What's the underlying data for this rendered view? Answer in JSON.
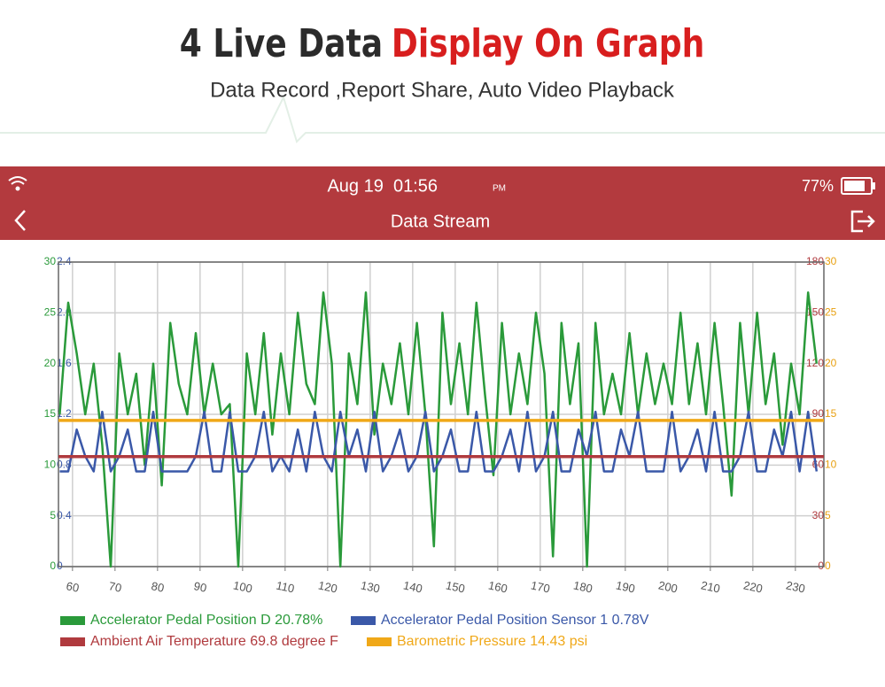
{
  "header": {
    "title_dark": "4 Live Data",
    "title_red": "Display On Graph",
    "subtitle": "Data Record ,Report Share, Auto Video Playback"
  },
  "status_bar": {
    "time": "Aug 19  01:56",
    "ampm": "PM",
    "battery": "77%"
  },
  "nav_bar": {
    "title": "Data Stream"
  },
  "chart_data": {
    "type": "line",
    "x": [
      57,
      59,
      61,
      63,
      65,
      67,
      69,
      71,
      73,
      75,
      77,
      79,
      81,
      83,
      85,
      87,
      89,
      91,
      93,
      95,
      97,
      99,
      101,
      103,
      105,
      107,
      109,
      111,
      113,
      115,
      117,
      119,
      121,
      123,
      125,
      127,
      129,
      131,
      133,
      135,
      137,
      139,
      141,
      143,
      145,
      147,
      149,
      151,
      153,
      155,
      157,
      159,
      161,
      163,
      165,
      167,
      169,
      171,
      173,
      175,
      177,
      179,
      181,
      183,
      185,
      187,
      189,
      191,
      193,
      195,
      197,
      199,
      201,
      203,
      205,
      207,
      209,
      211,
      213,
      215,
      217,
      219,
      221,
      223,
      225,
      227,
      229,
      231,
      233,
      235
    ],
    "xlim": [
      56.7,
      236.7
    ],
    "xticks": [
      60,
      70,
      80,
      90,
      100,
      110,
      120,
      130,
      140,
      150,
      160,
      170,
      180,
      190,
      200,
      210,
      220,
      230
    ],
    "grid": true,
    "yaxes": [
      {
        "side": "left",
        "color": "#2a9a3a",
        "lim": [
          0,
          30
        ],
        "ticks": [
          0,
          5,
          10,
          15,
          20,
          25,
          30
        ]
      },
      {
        "side": "left",
        "color": "#3a58a8",
        "lim": [
          0,
          2.4
        ],
        "ticks": [
          0,
          0.4,
          0.8,
          1.2,
          1.6,
          {
            "value": 2,
            "label": "2.0"
          },
          2.4
        ]
      },
      {
        "side": "right",
        "color": "#b03a3e",
        "lim": [
          0,
          180
        ],
        "ticks": [
          0,
          30,
          60,
          90,
          120,
          150,
          180
        ]
      },
      {
        "side": "right",
        "color": "#e8a010",
        "lim": [
          0,
          30
        ],
        "ticks": [
          0,
          5,
          10,
          15,
          20,
          25,
          30
        ]
      }
    ],
    "series": [
      {
        "name": "Accelerator Pedal Position D 20.78%",
        "color": "#2a9a3a",
        "axis": 0,
        "values": [
          15,
          26,
          21,
          15,
          20,
          12,
          0,
          21,
          15,
          19,
          10,
          20,
          8,
          24,
          18,
          15,
          23,
          15,
          20,
          15,
          16,
          0,
          21,
          15,
          23,
          13,
          21,
          15,
          25,
          18,
          16,
          27,
          20,
          0,
          21,
          16,
          27,
          13,
          20,
          16,
          22,
          15,
          24,
          15,
          2,
          25,
          16,
          22,
          15,
          26,
          17,
          9,
          24,
          15,
          21,
          16,
          25,
          19,
          1,
          24,
          16,
          22,
          0,
          24,
          15,
          19,
          15,
          23,
          15,
          21,
          16,
          20,
          16,
          25,
          16,
          22,
          15,
          24,
          16,
          7,
          24,
          15,
          25,
          16,
          21,
          12,
          20,
          15,
          27,
          20
        ]
      },
      {
        "name": "Accelerator Pedal Position Sensor 1 0.78V",
        "color": "#3a58a8",
        "axis": 1,
        "values": [
          0.75,
          0.75,
          1.08,
          0.87,
          0.75,
          1.22,
          0.75,
          0.87,
          1.08,
          0.75,
          0.75,
          1.22,
          0.75,
          0.75,
          0.75,
          0.75,
          0.87,
          1.22,
          0.75,
          0.75,
          1.22,
          0.75,
          0.75,
          0.87,
          1.22,
          0.75,
          0.87,
          0.75,
          1.08,
          0.75,
          1.22,
          0.87,
          0.75,
          1.22,
          0.87,
          1.08,
          0.75,
          1.22,
          0.75,
          0.87,
          1.08,
          0.75,
          0.87,
          1.22,
          0.75,
          0.87,
          1.08,
          0.75,
          0.75,
          1.22,
          0.75,
          0.75,
          0.87,
          1.08,
          0.75,
          1.22,
          0.75,
          0.87,
          1.22,
          0.75,
          0.75,
          1.08,
          0.87,
          1.22,
          0.75,
          0.75,
          1.08,
          0.87,
          1.22,
          0.75,
          0.75,
          0.75,
          1.22,
          0.75,
          0.87,
          1.08,
          0.75,
          1.22,
          0.75,
          0.75,
          0.87,
          1.22,
          0.75,
          0.75,
          1.08,
          0.87,
          1.22,
          0.75,
          1.22,
          0.75
        ]
      },
      {
        "name": "Ambient Air Temperature 69.8 degree F",
        "color": "#b03a3e",
        "axis": 2,
        "x": [
          56.7,
          236.7
        ],
        "values": [
          65,
          65
        ]
      },
      {
        "name": "Barometric Pressure 14.43 psi",
        "color": "#f0a818",
        "axis": 3,
        "x": [
          56.7,
          236.7
        ],
        "values": [
          14.4,
          14.4
        ]
      }
    ]
  }
}
